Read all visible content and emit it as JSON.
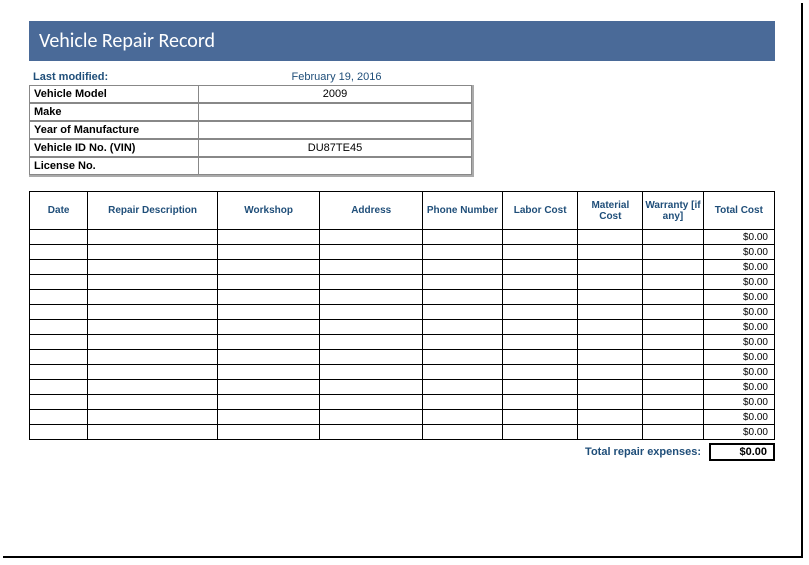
{
  "title": "Vehicle Repair Record",
  "info": {
    "last_modified_label": "Last modified:",
    "last_modified_value": "February 19, 2016",
    "vehicle_model_label": "Vehicle Model",
    "vehicle_model_value": "2009",
    "make_label": "Make",
    "make_value": "",
    "year_label": "Year of Manufacture",
    "year_value": "",
    "vin_label": "Vehicle ID No. (VIN)",
    "vin_value": "DU87TE45",
    "license_label": "License No.",
    "license_value": ""
  },
  "table": {
    "columns": [
      "Date",
      "Repair Description",
      "Workshop",
      "Address",
      "Phone Number",
      "Labor Cost",
      "Material Cost",
      "Warranty [if any]",
      "Total Cost"
    ],
    "rows": [
      {
        "total": "$0.00"
      },
      {
        "total": "$0.00"
      },
      {
        "total": "$0.00"
      },
      {
        "total": "$0.00"
      },
      {
        "total": "$0.00"
      },
      {
        "total": "$0.00"
      },
      {
        "total": "$0.00"
      },
      {
        "total": "$0.00"
      },
      {
        "total": "$0.00"
      },
      {
        "total": "$0.00"
      },
      {
        "total": "$0.00"
      },
      {
        "total": "$0.00"
      },
      {
        "total": "$0.00"
      },
      {
        "total": "$0.00"
      }
    ]
  },
  "totals": {
    "label": "Total repair expenses:",
    "value": "$0.00"
  },
  "colors": {
    "title_bg": "#4a6a98",
    "title_text": "#ffffff",
    "accent_text": "#1f4e79",
    "border": "#000000"
  }
}
